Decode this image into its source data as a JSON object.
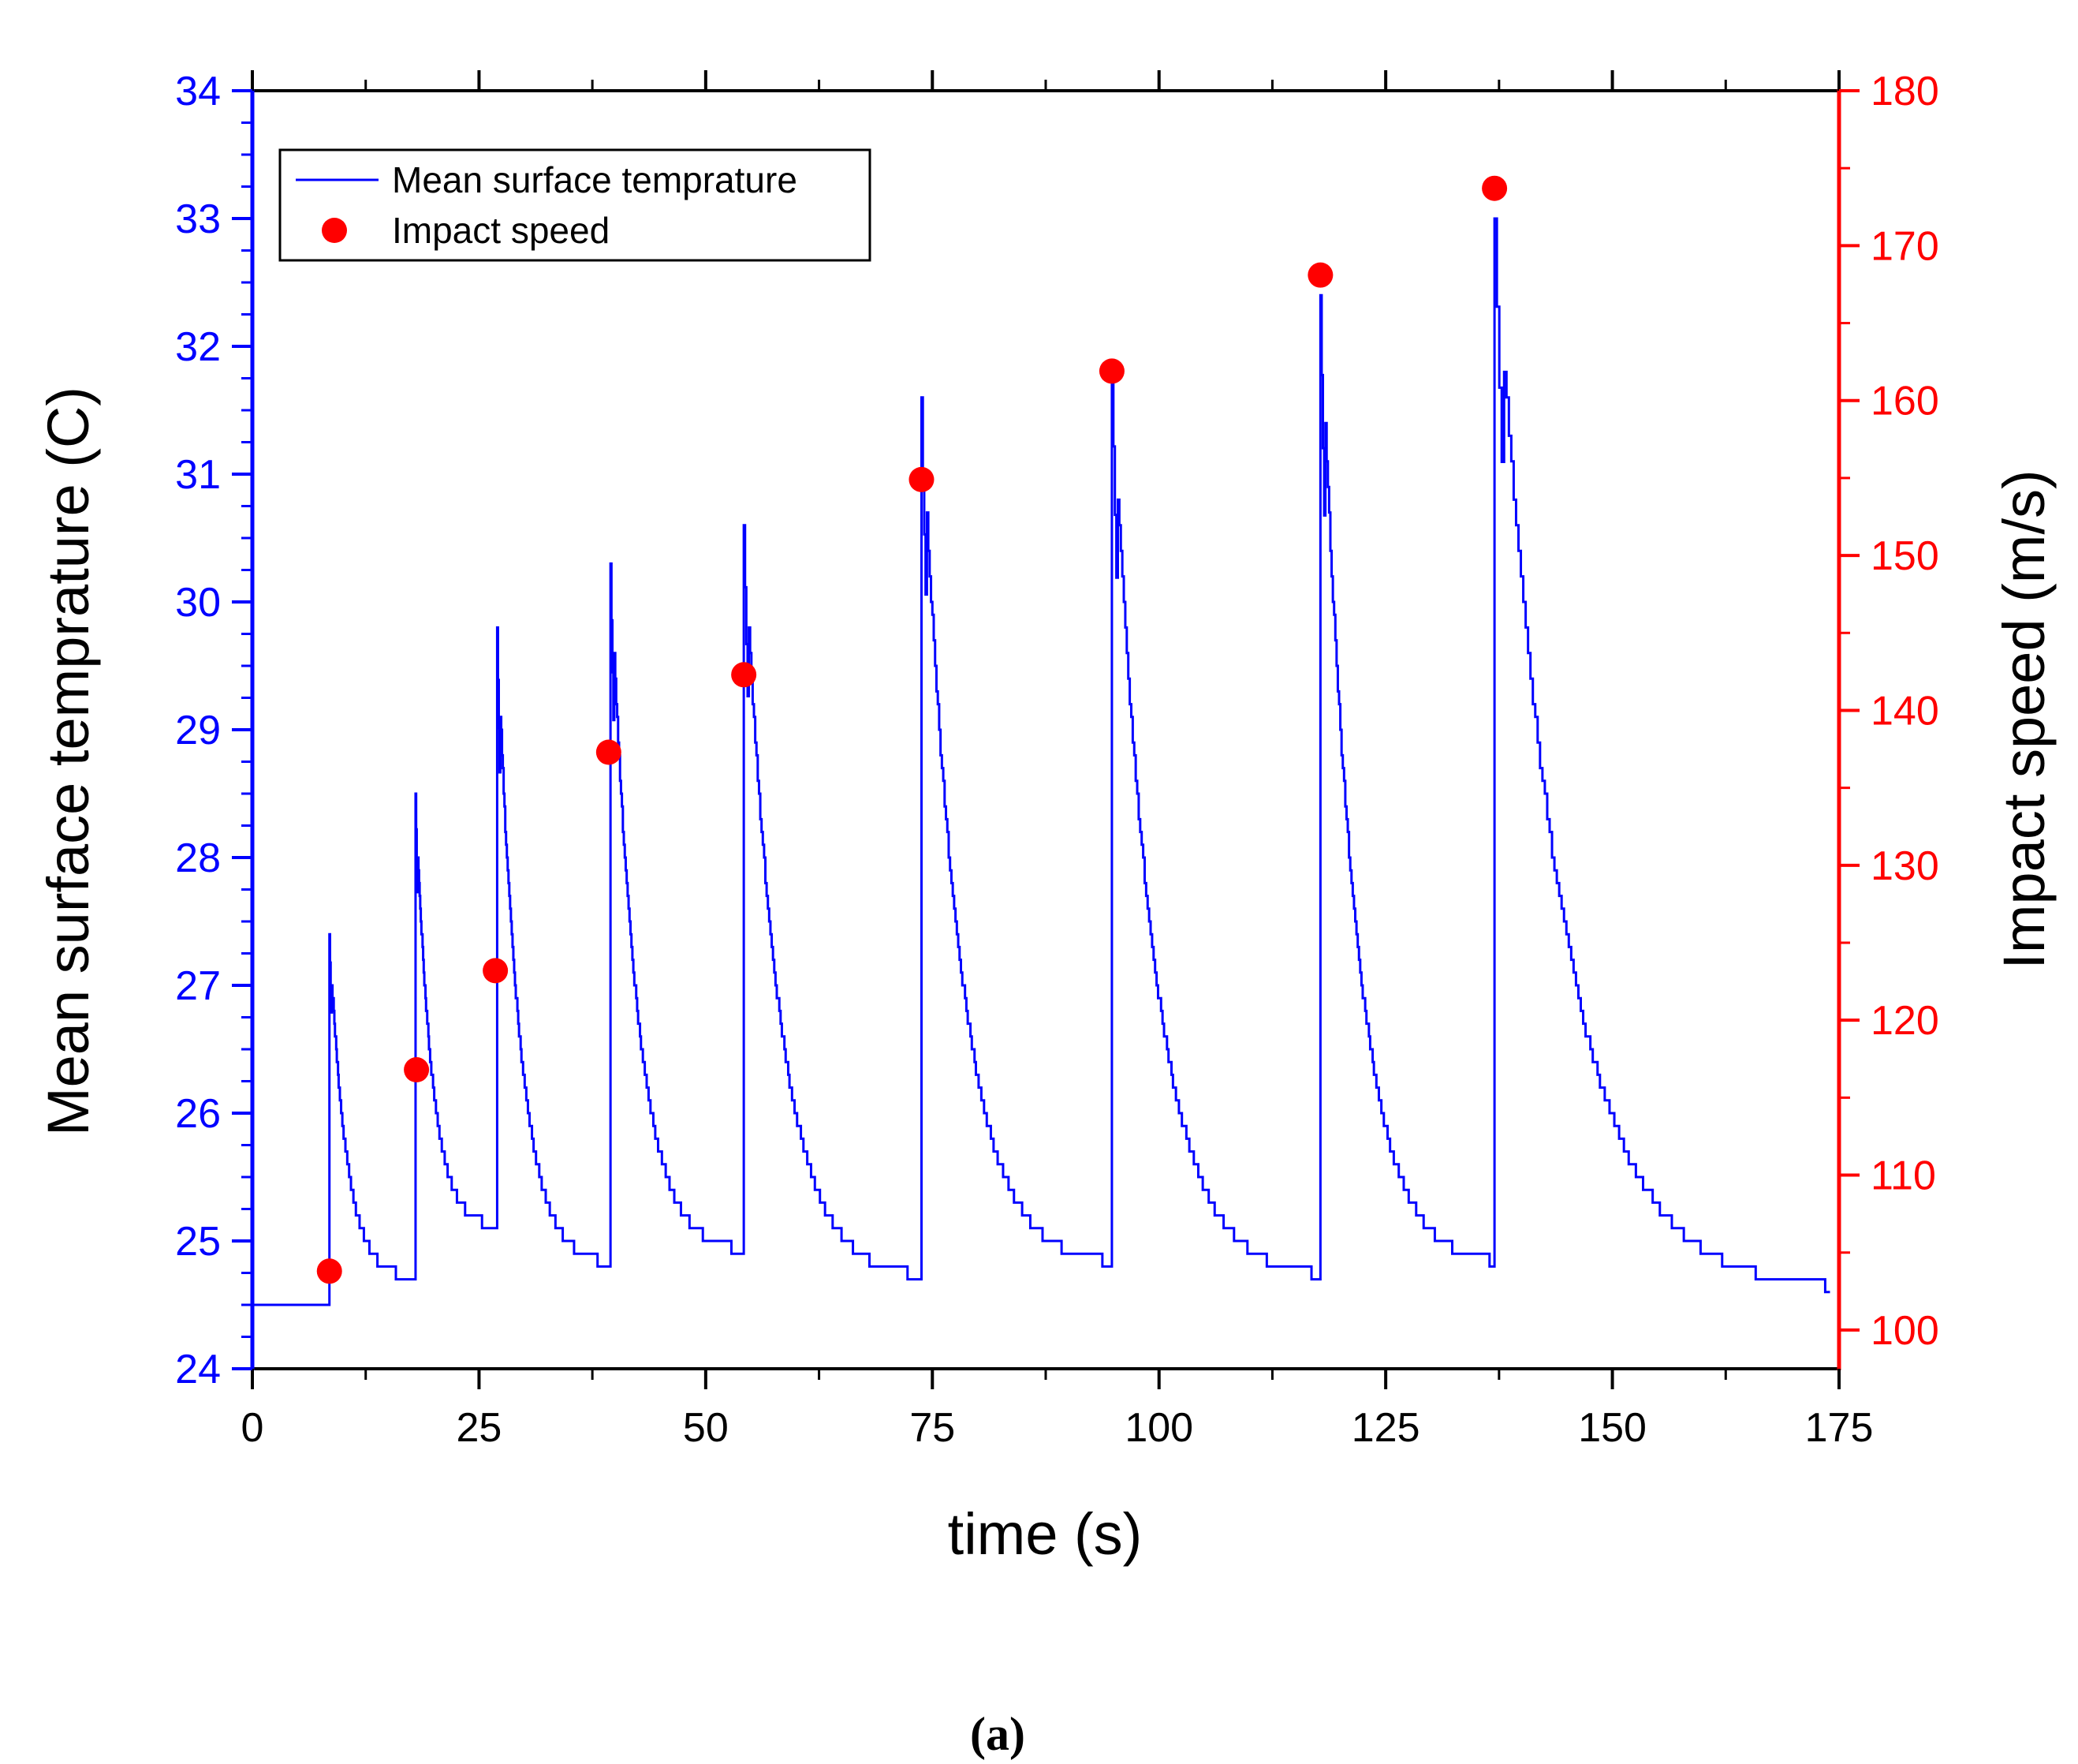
{
  "chart_data": {
    "type": "line",
    "caption": "(a)",
    "colors": {
      "temperature": "#0000ff",
      "speed": "#ff0000",
      "axis": "#000000"
    },
    "x_axis": {
      "label": "time (s)",
      "range": [
        0,
        175
      ],
      "ticks": [
        0,
        25,
        50,
        75,
        100,
        125,
        150,
        175
      ],
      "tick_labels": [
        "0",
        "25",
        "50",
        "75",
        "100",
        "125",
        "150",
        "175"
      ]
    },
    "y_axis_left": {
      "label": "Mean surface temprature (C)",
      "range": [
        24,
        34
      ],
      "ticks": [
        24,
        25,
        26,
        27,
        28,
        29,
        30,
        31,
        32,
        33,
        34
      ],
      "tick_labels": [
        "24",
        "25",
        "26",
        "27",
        "28",
        "29",
        "30",
        "31",
        "32",
        "33",
        "34"
      ]
    },
    "y_axis_right": {
      "label": "Impact speed (m/s)",
      "range": [
        97.5,
        180
      ],
      "ticks": [
        100,
        110,
        120,
        130,
        140,
        150,
        160,
        170,
        180
      ],
      "tick_labels": [
        "100",
        "110",
        "120",
        "130",
        "140",
        "150",
        "160",
        "170",
        "180"
      ]
    },
    "legend": {
      "placement": "top-left",
      "entries": [
        {
          "label": "Mean surface temprature",
          "marker": "line"
        },
        {
          "label": "Impact speed",
          "marker": "circle"
        }
      ]
    },
    "series": [
      {
        "name": "Mean surface temprature",
        "axis": "left",
        "baseline": {
          "x": [
            0,
            8.5
          ],
          "y": 24.5
        },
        "events": [
          {
            "t": 8.5,
            "base": 24.5,
            "peak": 27.4,
            "end_t": 18.0,
            "end": 24.7
          },
          {
            "t": 18.0,
            "base": 24.7,
            "peak": 28.5,
            "end_t": 27.0,
            "end": 25.1
          },
          {
            "t": 27.0,
            "base": 25.1,
            "peak": 29.8,
            "end_t": 39.5,
            "end": 24.8
          },
          {
            "t": 39.5,
            "base": 24.8,
            "peak": 30.3,
            "end_t": 54.2,
            "end": 24.9
          },
          {
            "t": 54.2,
            "base": 24.9,
            "peak": 30.6,
            "end_t": 73.8,
            "end": 24.7
          },
          {
            "t": 73.8,
            "base": 24.7,
            "peak": 31.6,
            "end_t": 94.8,
            "end": 24.8
          },
          {
            "t": 94.8,
            "base": 24.8,
            "peak": 31.8,
            "end_t": 117.8,
            "end": 24.7
          },
          {
            "t": 117.8,
            "base": 24.7,
            "peak": 32.4,
            "end_t": 137.0,
            "end": 24.8
          },
          {
            "t": 137.0,
            "base": 24.8,
            "peak": 33.0,
            "end_t": 174.0,
            "end": 24.6
          }
        ]
      },
      {
        "name": "Impact speed",
        "axis": "right",
        "points": [
          {
            "x": 8.5,
            "y": 103.8
          },
          {
            "x": 18.1,
            "y": 116.8
          },
          {
            "x": 26.8,
            "y": 123.2
          },
          {
            "x": 39.3,
            "y": 137.3
          },
          {
            "x": 54.2,
            "y": 142.3
          },
          {
            "x": 73.8,
            "y": 154.9
          },
          {
            "x": 94.8,
            "y": 161.9
          },
          {
            "x": 117.8,
            "y": 168.1
          },
          {
            "x": 137.0,
            "y": 173.7
          }
        ]
      }
    ]
  }
}
